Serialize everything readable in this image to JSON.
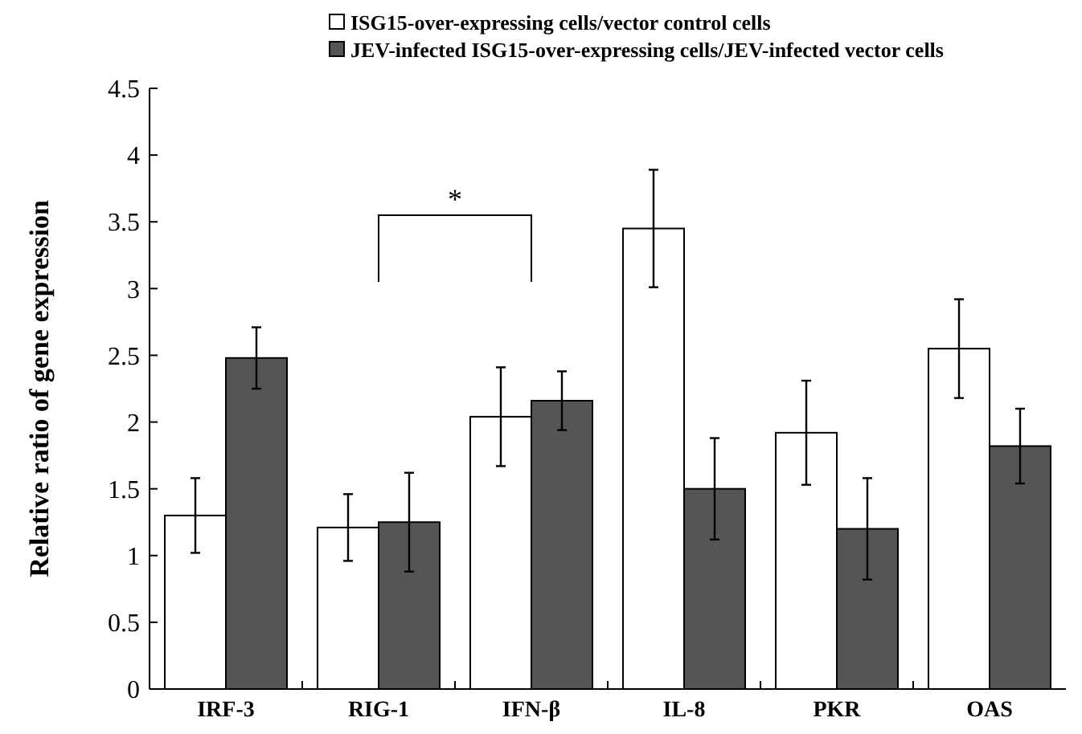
{
  "chart_data": {
    "type": "bar",
    "ylabel": "Relative ratio of gene expression",
    "categories": [
      "IRF-3",
      "RIG-1",
      "IFN-β",
      "IL-8",
      "PKR",
      "OAS"
    ],
    "series": [
      {
        "name": "ISG15-over-expressing cells/vector control cells",
        "color": "#ffffff",
        "values": [
          1.3,
          1.21,
          2.04,
          3.45,
          1.92,
          2.55
        ],
        "errors": [
          0.28,
          0.25,
          0.37,
          0.44,
          0.39,
          0.37
        ]
      },
      {
        "name": "JEV-infected ISG15-over-expressing cells/JEV-infected vector cells",
        "color": "#555555",
        "values": [
          2.48,
          1.25,
          2.16,
          1.5,
          1.2,
          1.82
        ],
        "errors": [
          0.23,
          0.37,
          0.22,
          0.38,
          0.38,
          0.28
        ]
      }
    ],
    "ylim": [
      0,
      4.5
    ],
    "yticks": [
      0,
      0.5,
      1,
      1.5,
      2,
      2.5,
      3,
      3.5,
      4,
      4.5
    ],
    "legend": "top",
    "grid": false,
    "annotations": [
      "*"
    ]
  }
}
